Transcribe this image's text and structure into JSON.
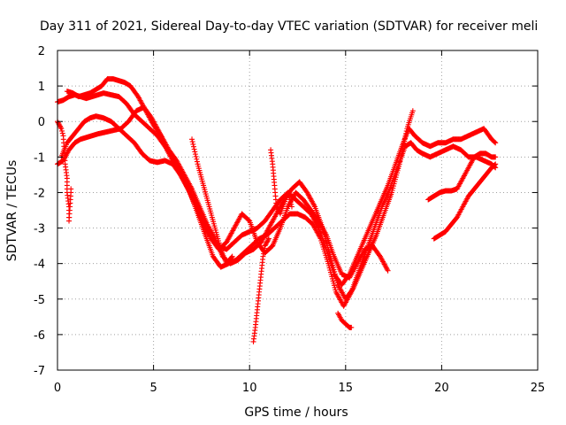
{
  "chart_data": {
    "type": "scatter",
    "title": "Day 311 of 2021, Sidereal Day-to-day VTEC variation (SDTVAR) for receiver meli",
    "xlabel": "GPS time / hours",
    "ylabel": "SDTVAR / TECUs",
    "xlim": [
      0,
      25
    ],
    "ylim": [
      -7,
      2
    ],
    "xticks": [
      "0",
      "5",
      "10",
      "15",
      "20",
      "25"
    ],
    "yticks": [
      "-7",
      "-6",
      "-5",
      "-4",
      "-3",
      "-2",
      "-1",
      "0",
      "1",
      "2"
    ],
    "grid": true,
    "marker": "plus",
    "color": "#ff0000",
    "series": [
      {
        "x": [
          0.0,
          0.3,
          0.6,
          0.9,
          1.2,
          1.5,
          1.8,
          2.1,
          2.5,
          2.9,
          3.3,
          3.7,
          4.1,
          4.5,
          4.9,
          5.3,
          5.7,
          6.1,
          6.5,
          6.9,
          7.3,
          7.7,
          8.1,
          8.5,
          8.9,
          9.3,
          9.7,
          10.1,
          10.5,
          10.9,
          11.3,
          11.7,
          12.1,
          12.5,
          12.9,
          13.3,
          13.7,
          14.1,
          14.5,
          14.9,
          15.3,
          15.7,
          16.1,
          16.5,
          16.9,
          17.3,
          17.7,
          18.1,
          18.4,
          18.7,
          19.0,
          19.4,
          19.8,
          20.2,
          20.6,
          21.0,
          21.4,
          21.8,
          22.2,
          22.6,
          22.8
        ],
        "y": [
          -1.2,
          -1.1,
          -0.8,
          -0.6,
          -0.5,
          -0.45,
          -0.4,
          -0.35,
          -0.3,
          -0.25,
          -0.2,
          0.0,
          0.3,
          0.4,
          0.1,
          -0.3,
          -0.8,
          -1.2,
          -1.6,
          -2.0,
          -2.6,
          -3.2,
          -3.8,
          -4.1,
          -4.0,
          -3.9,
          -3.7,
          -3.5,
          -3.3,
          -3.2,
          -3.0,
          -2.8,
          -2.6,
          -2.6,
          -2.7,
          -2.9,
          -3.3,
          -4.0,
          -4.8,
          -5.2,
          -4.8,
          -4.2,
          -3.6,
          -3.0,
          -2.4,
          -1.9,
          -1.3,
          -0.7,
          -0.6,
          -0.8,
          -0.9,
          -1.0,
          -0.9,
          -0.8,
          -0.7,
          -0.8,
          -1.0,
          -1.0,
          -1.1,
          -1.2,
          -1.3
        ]
      },
      {
        "x": [
          0.0,
          0.3,
          0.6,
          0.9,
          1.2,
          1.5,
          1.8,
          2.1,
          2.4,
          2.8,
          3.2,
          3.6,
          4.0,
          4.4,
          4.8,
          5.2,
          5.6,
          6.0,
          6.4,
          6.8,
          7.2,
          7.6,
          8.0,
          8.4,
          8.8,
          9.2,
          9.6,
          10.0,
          10.4,
          10.8,
          11.2,
          11.6,
          12.0,
          12.4,
          12.8,
          13.2,
          13.6,
          14.0,
          14.4,
          14.8,
          15.2,
          15.6,
          16.0,
          16.4,
          16.8,
          17.2,
          17.6,
          18.0,
          18.3,
          18.6,
          19.0,
          19.4,
          19.8,
          20.2,
          20.6,
          21.0,
          21.4,
          21.8,
          22.2,
          22.6,
          22.8
        ],
        "y": [
          0.55,
          0.6,
          0.7,
          0.75,
          0.7,
          0.65,
          0.7,
          0.75,
          0.8,
          0.75,
          0.7,
          0.5,
          0.2,
          0.0,
          -0.2,
          -0.4,
          -0.7,
          -1.0,
          -1.4,
          -1.9,
          -2.4,
          -2.9,
          -3.3,
          -3.5,
          -3.6,
          -3.4,
          -3.2,
          -3.1,
          -3.0,
          -2.8,
          -2.5,
          -2.2,
          -2.0,
          -2.2,
          -2.4,
          -2.6,
          -3.0,
          -3.6,
          -4.3,
          -4.6,
          -4.3,
          -3.8,
          -3.3,
          -2.8,
          -2.3,
          -1.8,
          -1.2,
          -0.6,
          -0.2,
          -0.4,
          -0.6,
          -0.7,
          -0.6,
          -0.6,
          -0.5,
          -0.5,
          -0.4,
          -0.3,
          -0.2,
          -0.5,
          -0.6
        ]
      },
      {
        "x": [
          0.5,
          0.8,
          1.1,
          1.4,
          1.7,
          2.0,
          2.3,
          2.6,
          2.9,
          3.2,
          3.5,
          3.8,
          4.2,
          4.6,
          5.0,
          5.4,
          5.8,
          6.2,
          6.6,
          7.0,
          7.4,
          7.8,
          8.2,
          8.6,
          9.0,
          9.4,
          9.8,
          10.2,
          10.6,
          11.0,
          11.4,
          11.8,
          12.2,
          12.6,
          13.0,
          13.4,
          13.8,
          14.2,
          14.6,
          15.0,
          15.4,
          15.8,
          16.2,
          16.6,
          17.0,
          17.4,
          17.8,
          18.2,
          18.5
        ],
        "y": [
          0.85,
          0.8,
          0.7,
          0.75,
          0.8,
          0.9,
          1.0,
          1.2,
          1.2,
          1.15,
          1.1,
          1.0,
          0.7,
          0.3,
          -0.1,
          -0.4,
          -0.8,
          -1.1,
          -1.5,
          -1.9,
          -2.4,
          -2.9,
          -3.3,
          -3.8,
          -4.0,
          -3.9,
          -3.7,
          -3.6,
          -3.4,
          -3.0,
          -2.6,
          -2.2,
          -1.9,
          -1.7,
          -2.0,
          -2.4,
          -3.0,
          -3.8,
          -4.6,
          -5.0,
          -4.7,
          -4.2,
          -3.7,
          -3.2,
          -2.6,
          -2.0,
          -1.2,
          -0.2,
          0.3
        ]
      },
      {
        "x": [
          0.2,
          0.5,
          0.8,
          1.1,
          1.4,
          1.7,
          2.0,
          2.4,
          2.8,
          3.2,
          3.6,
          4.0,
          4.4,
          4.8,
          5.2,
          5.6,
          6.0,
          6.4,
          6.8,
          7.2,
          7.6,
          8.0,
          8.4,
          8.8,
          9.2,
          9.6,
          10.0,
          10.4,
          10.8,
          11.2,
          11.6,
          12.0,
          12.4,
          12.8,
          13.2,
          13.6,
          14.0,
          14.4,
          14.8,
          15.2,
          15.6,
          16.0,
          16.4,
          16.8,
          17.2
        ],
        "y": [
          -1.0,
          -0.6,
          -0.4,
          -0.2,
          0.0,
          0.1,
          0.15,
          0.1,
          0.0,
          -0.2,
          -0.4,
          -0.6,
          -0.9,
          -1.1,
          -1.15,
          -1.1,
          -1.2,
          -1.5,
          -1.9,
          -2.3,
          -2.8,
          -3.3,
          -3.6,
          -3.4,
          -3.0,
          -2.6,
          -2.8,
          -3.4,
          -3.7,
          -3.5,
          -3.0,
          -2.4,
          -2.0,
          -2.2,
          -2.5,
          -2.8,
          -3.2,
          -3.8,
          -4.3,
          -4.4,
          -4.0,
          -3.6,
          -3.5,
          -3.8,
          -4.2
        ]
      },
      {
        "x": [
          0.0,
          0.1,
          0.2,
          0.3,
          0.4,
          0.5,
          0.5,
          0.6,
          0.6,
          0.7,
          0.7
        ],
        "y": [
          0.0,
          -0.1,
          -0.2,
          -0.4,
          -1.2,
          -1.6,
          -2.0,
          -2.4,
          -2.8,
          -2.0,
          -1.9
        ]
      },
      {
        "x": [
          7.0,
          7.3,
          7.6,
          7.9,
          8.2,
          8.5,
          8.8,
          9.1
        ],
        "y": [
          -0.5,
          -1.2,
          -1.8,
          -2.4,
          -3.0,
          -3.6,
          -4.0,
          -3.8
        ]
      },
      {
        "x": [
          10.2,
          10.3,
          10.4,
          10.5,
          10.6,
          10.7,
          10.8,
          10.9,
          11.0
        ],
        "y": [
          -6.2,
          -5.8,
          -5.3,
          -4.8,
          -4.3,
          -3.8,
          -3.5,
          -3.4,
          -3.3
        ]
      },
      {
        "x": [
          11.1,
          11.2,
          11.3,
          11.4,
          11.6,
          11.8,
          12.0,
          12.2
        ],
        "y": [
          -0.8,
          -1.2,
          -1.8,
          -2.4,
          -2.6,
          -2.3,
          -2.0,
          -2.4
        ]
      },
      {
        "x": [
          14.6,
          14.8,
          15.0,
          15.2,
          15.3
        ],
        "y": [
          -5.4,
          -5.6,
          -5.7,
          -5.8,
          -5.8
        ]
      },
      {
        "x": [
          19.6,
          19.9,
          20.2,
          20.5,
          20.8,
          21.1,
          21.4,
          21.7,
          22.0,
          22.3,
          22.6,
          22.8
        ],
        "y": [
          -3.3,
          -3.2,
          -3.1,
          -2.9,
          -2.7,
          -2.4,
          -2.1,
          -1.9,
          -1.7,
          -1.5,
          -1.3,
          -1.2
        ]
      },
      {
        "x": [
          19.3,
          19.6,
          19.9,
          20.2,
          20.5,
          20.8,
          21.1,
          21.4,
          21.7,
          22.0,
          22.3,
          22.6,
          22.8
        ],
        "y": [
          -2.2,
          -2.1,
          -2.0,
          -1.95,
          -1.95,
          -1.9,
          -1.6,
          -1.3,
          -1.0,
          -0.9,
          -0.9,
          -1.0,
          -1.0
        ]
      }
    ]
  }
}
